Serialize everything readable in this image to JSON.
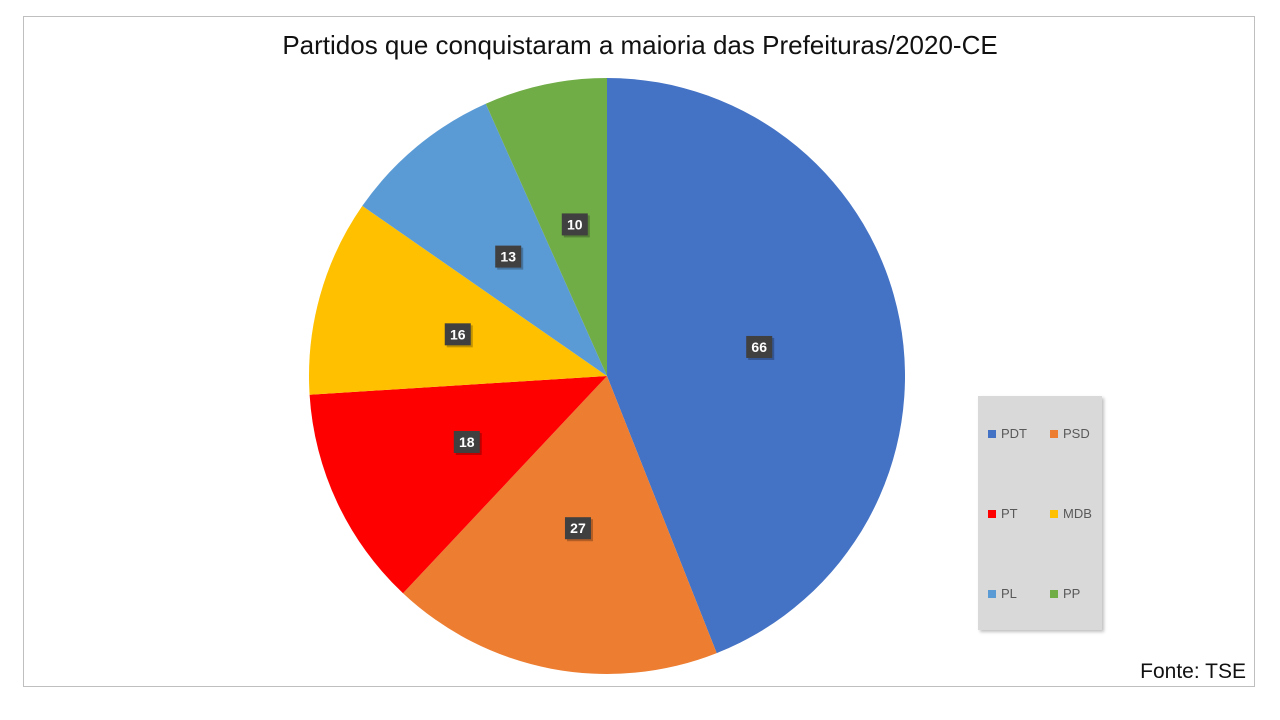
{
  "chart_data": {
    "type": "pie",
    "title": "Partidos que conquistaram a maioria das Prefeituras/2020-CE",
    "categories": [
      "PDT",
      "PSD",
      "PT",
      "MDB",
      "PL",
      "PP"
    ],
    "values": [
      66,
      27,
      18,
      16,
      13,
      10
    ],
    "colors": [
      "#4472C4",
      "#ED7D31",
      "#FF0000",
      "#FFC000",
      "#5B9BD5",
      "#70AD47"
    ],
    "legend_position": "right",
    "data_labels": true
  },
  "source_note": "Fonte: TSE"
}
